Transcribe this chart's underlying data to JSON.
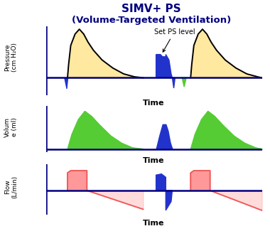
{
  "title_line1": "SIMV+ PS",
  "title_line2": "(Volume-Targeted Ventilation)",
  "title_fontsize": 11,
  "title_color": "#000080",
  "background_color": "#ffffff",
  "panel_labels": [
    "Pressure\n(cm H₂O)",
    "Volum\ne (ml)",
    "Flow\n(L/min)"
  ],
  "time_label": "Time",
  "axis_color": "#000080",
  "annotation_text": "Set PS level",
  "yellow_color": "#FFE8A0",
  "green_color": "#55CC33",
  "blue_color": "#2233CC",
  "red_color": "#EE5555",
  "pink_fill": "#FF9999"
}
